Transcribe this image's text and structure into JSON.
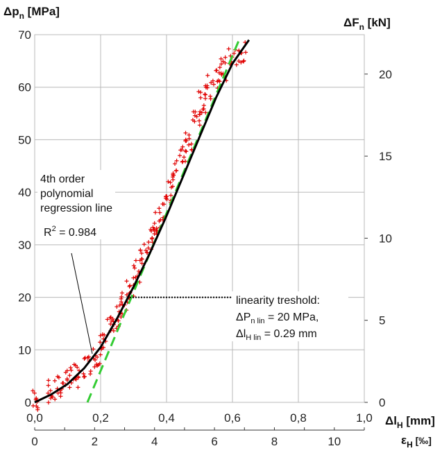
{
  "chart_data": {
    "type": "scatter",
    "colors": {
      "points": "#e00000",
      "poly": "#000000",
      "linear": "#33cc33",
      "grid": "#b8b8b8"
    },
    "axes": {
      "y_left": {
        "label_main": "Δp",
        "label_sub": "n",
        "label_unit": " [MPa]",
        "range": [
          0,
          70
        ],
        "ticks": [
          0,
          10,
          20,
          30,
          40,
          50,
          60,
          70
        ]
      },
      "y_right": {
        "label_main": "ΔF",
        "label_sub": "n",
        "label_unit": " [kN]",
        "range": [
          0,
          22.4
        ],
        "ticks": [
          0,
          5,
          10,
          15,
          20
        ]
      },
      "x_primary": {
        "label_main": "Δl",
        "label_sub": "H",
        "label_unit": " [mm]",
        "range": [
          0,
          1.0
        ],
        "tick_labels": [
          "0,0",
          "0,2",
          "0,4",
          "0,6",
          "0,8",
          "1,0"
        ],
        "tick_values": [
          0,
          0.2,
          0.4,
          0.6,
          0.8,
          1.0
        ]
      },
      "x_secondary": {
        "label_main": "ε",
        "label_sub": "H",
        "label_unit": " [‰]",
        "range": [
          0,
          11
        ],
        "ticks": [
          0,
          2,
          4,
          6,
          8,
          10
        ]
      }
    },
    "grid": true,
    "measured_points": {
      "marker": "+",
      "clusters": [
        {
          "x": 0.005,
          "y": 0.5
        },
        {
          "x": 0.05,
          "y": 2
        },
        {
          "x": 0.08,
          "y": 3
        },
        {
          "x": 0.1,
          "y": 4.5
        },
        {
          "x": 0.13,
          "y": 5
        },
        {
          "x": 0.16,
          "y": 7
        },
        {
          "x": 0.19,
          "y": 9
        },
        {
          "x": 0.21,
          "y": 11
        },
        {
          "x": 0.23,
          "y": 14
        },
        {
          "x": 0.25,
          "y": 16
        },
        {
          "x": 0.27,
          "y": 19
        },
        {
          "x": 0.29,
          "y": 22
        },
        {
          "x": 0.31,
          "y": 25
        },
        {
          "x": 0.33,
          "y": 28
        },
        {
          "x": 0.355,
          "y": 31
        },
        {
          "x": 0.37,
          "y": 34
        },
        {
          "x": 0.39,
          "y": 37
        },
        {
          "x": 0.41,
          "y": 40
        },
        {
          "x": 0.43,
          "y": 44
        },
        {
          "x": 0.45,
          "y": 47
        },
        {
          "x": 0.47,
          "y": 50
        },
        {
          "x": 0.49,
          "y": 54
        },
        {
          "x": 0.51,
          "y": 57
        },
        {
          "x": 0.53,
          "y": 60
        },
        {
          "x": 0.55,
          "y": 62
        },
        {
          "x": 0.57,
          "y": 63.5
        },
        {
          "x": 0.6,
          "y": 66
        },
        {
          "x": 0.63,
          "y": 66.5
        }
      ]
    },
    "polynomial_fit": {
      "x": [
        0,
        0.05,
        0.1,
        0.15,
        0.2,
        0.25,
        0.3,
        0.35,
        0.4,
        0.45,
        0.5,
        0.55,
        0.6,
        0.65
      ],
      "y": [
        0,
        1.5,
        3.5,
        6.5,
        10.5,
        16,
        22,
        28.5,
        35.5,
        43,
        50.5,
        58,
        64.5,
        69
      ]
    },
    "linear_fit": {
      "x": [
        0.16,
        0.62
      ],
      "y": [
        0,
        69
      ]
    },
    "threshold": {
      "x": [
        0.28,
        0.6
      ],
      "y": [
        20,
        20
      ]
    },
    "annotations": {
      "poly_title": [
        "4th order",
        "polynomial",
        "regression line"
      ],
      "r2_prefix": "R",
      "r2_sup": "2",
      "r2_suffix": " = 0.984",
      "threshold_title": "linearity treshold:",
      "threshold_p_main": "ΔP",
      "threshold_p_sub": "n lin",
      "threshold_p_value": " = 20 MPa,",
      "threshold_l_main": "Δl",
      "threshold_l_sub": "H lin",
      "threshold_l_value": "  = 0.29 mm"
    }
  }
}
